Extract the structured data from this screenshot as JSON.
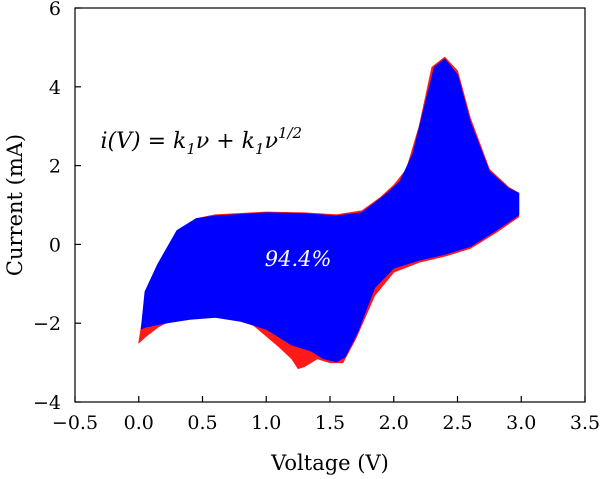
{
  "chart_data": {
    "type": "area",
    "xlabel": "Voltage (V)",
    "ylabel": "Current (mA)",
    "xlim": [
      -0.5,
      3.5
    ],
    "ylim": [
      -4,
      6
    ],
    "x_ticks": [
      -0.5,
      0.0,
      0.5,
      1.0,
      1.5,
      2.0,
      2.5,
      3.0,
      3.5
    ],
    "x_tick_labels": [
      "−0.5",
      "0.0",
      "0.5",
      "1.0",
      "1.5",
      "2.0",
      "2.5",
      "3.0",
      "3.5"
    ],
    "y_ticks": [
      -4,
      -2,
      0,
      2,
      4,
      6
    ],
    "y_tick_labels": [
      "−4",
      "−2",
      "0",
      "2",
      "4",
      "6"
    ],
    "grid": false,
    "annotations": {
      "equation": {
        "lhs": "i(V) = k",
        "sub1": "1",
        "mid": "ν + k",
        "sub2": "1",
        "nu": "ν",
        "sup": "1/2"
      },
      "percentage": "94.4%"
    },
    "series": [
      {
        "color": "#ff1a1a",
        "points": [
          [
            0.0,
            -2.5
          ],
          [
            0.05,
            -1.5
          ],
          [
            0.15,
            -0.6
          ],
          [
            0.3,
            0.3
          ],
          [
            0.45,
            0.65
          ],
          [
            0.6,
            0.75
          ],
          [
            1.0,
            0.82
          ],
          [
            1.3,
            0.8
          ],
          [
            1.55,
            0.75
          ],
          [
            1.75,
            0.85
          ],
          [
            1.9,
            1.2
          ],
          [
            2.0,
            1.5
          ],
          [
            2.1,
            1.9
          ],
          [
            2.2,
            3.0
          ],
          [
            2.3,
            4.5
          ],
          [
            2.4,
            4.75
          ],
          [
            2.5,
            4.4
          ],
          [
            2.6,
            3.2
          ],
          [
            2.75,
            1.9
          ],
          [
            2.9,
            1.45
          ],
          [
            2.98,
            1.3
          ],
          [
            2.98,
            0.7
          ],
          [
            2.8,
            0.3
          ],
          [
            2.6,
            -0.1
          ],
          [
            2.4,
            -0.3
          ],
          [
            2.2,
            -0.45
          ],
          [
            2.0,
            -0.7
          ],
          [
            1.85,
            -1.3
          ],
          [
            1.7,
            -2.4
          ],
          [
            1.6,
            -3.0
          ],
          [
            1.5,
            -3.0
          ],
          [
            1.4,
            -2.9
          ],
          [
            1.3,
            -3.1
          ],
          [
            1.25,
            -3.15
          ],
          [
            1.2,
            -2.9
          ],
          [
            1.1,
            -2.6
          ],
          [
            0.9,
            -2.05
          ],
          [
            0.7,
            -1.85
          ],
          [
            0.5,
            -1.75
          ],
          [
            0.3,
            -1.85
          ],
          [
            0.15,
            -2.1
          ],
          [
            0.05,
            -2.35
          ]
        ]
      },
      {
        "color": "#0000ff",
        "points": [
          [
            0.02,
            -2.15
          ],
          [
            0.05,
            -1.2
          ],
          [
            0.15,
            -0.5
          ],
          [
            0.3,
            0.35
          ],
          [
            0.45,
            0.65
          ],
          [
            0.6,
            0.72
          ],
          [
            1.0,
            0.8
          ],
          [
            1.3,
            0.78
          ],
          [
            1.55,
            0.72
          ],
          [
            1.75,
            0.8
          ],
          [
            1.95,
            1.3
          ],
          [
            2.05,
            1.6
          ],
          [
            2.15,
            2.3
          ],
          [
            2.25,
            3.6
          ],
          [
            2.32,
            4.5
          ],
          [
            2.4,
            4.7
          ],
          [
            2.5,
            4.3
          ],
          [
            2.6,
            3.1
          ],
          [
            2.75,
            1.85
          ],
          [
            2.9,
            1.42
          ],
          [
            2.98,
            1.3
          ],
          [
            2.98,
            0.75
          ],
          [
            2.8,
            0.35
          ],
          [
            2.6,
            -0.05
          ],
          [
            2.4,
            -0.25
          ],
          [
            2.2,
            -0.4
          ],
          [
            2.0,
            -0.6
          ],
          [
            1.85,
            -1.1
          ],
          [
            1.72,
            -2.2
          ],
          [
            1.62,
            -2.85
          ],
          [
            1.55,
            -2.98
          ],
          [
            1.45,
            -2.9
          ],
          [
            1.35,
            -2.7
          ],
          [
            1.2,
            -2.55
          ],
          [
            1.0,
            -2.15
          ],
          [
            0.8,
            -1.95
          ],
          [
            0.6,
            -1.85
          ],
          [
            0.4,
            -1.9
          ],
          [
            0.2,
            -2.0
          ],
          [
            0.05,
            -2.1
          ]
        ]
      }
    ]
  }
}
